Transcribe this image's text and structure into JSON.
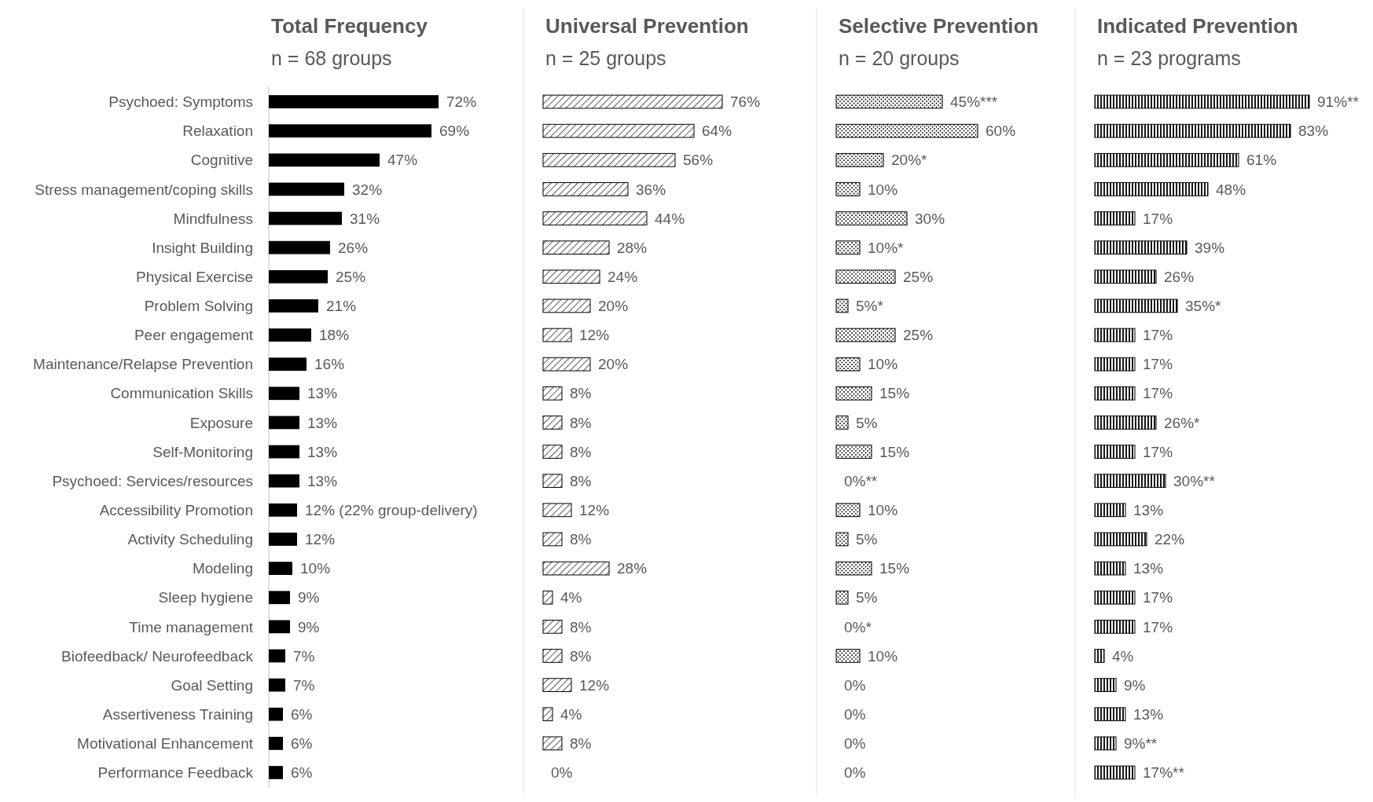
{
  "chart_data": [
    {
      "type": "bar",
      "orientation": "horizontal",
      "title": "Total Frequency",
      "subtitle": "n = 68 groups",
      "color": "#000000",
      "tick_labels": "y",
      "categories": [
        "Psychoed: Symptoms",
        "Relaxation",
        "Cognitive",
        "Stress management/coping skills",
        "Mindfulness",
        "Insight Building",
        "Physical Exercise",
        "Problem Solving",
        "Peer engagement",
        "Maintenance/Relapse Prevention",
        "Communication Skills",
        "Exposure",
        "Self-Monitoring",
        "Psychoed: Services/resources",
        "Accessibility Promotion",
        "Activity Scheduling",
        "Modeling",
        "Sleep hygiene",
        "Time management",
        "Biofeedback/ Neurofeedback",
        "Goal Setting",
        "Assertiveness Training",
        "Motivational Enhancement",
        "Performance Feedback"
      ],
      "values": [
        72,
        69,
        47,
        32,
        31,
        26,
        25,
        21,
        18,
        16,
        13,
        13,
        13,
        13,
        12,
        12,
        10,
        9,
        9,
        7,
        7,
        6,
        6,
        6
      ],
      "value_labels": [
        "72%",
        "69%",
        "47%",
        "32%",
        "31%",
        "26%",
        "25%",
        "21%",
        "18%",
        "16%",
        "13%",
        "13%",
        "13%",
        "13%",
        "12% (22% group-delivery)",
        "12%",
        "10%",
        "9%",
        "9%",
        "7%",
        "7%",
        "6%",
        "6%",
        "6%"
      ]
    },
    {
      "type": "bar",
      "orientation": "horizontal",
      "title": "Universal Prevention",
      "subtitle": "n = 25 groups",
      "color": "#000000",
      "tick_labels": false,
      "categories": [
        null,
        null,
        null,
        null,
        null,
        null,
        null,
        null,
        null,
        null,
        null,
        null,
        null,
        null,
        null,
        null,
        null,
        null,
        null,
        null,
        null,
        null,
        null,
        null
      ],
      "values": [
        76,
        64,
        56,
        36,
        44,
        28,
        24,
        20,
        12,
        20,
        8,
        8,
        8,
        8,
        12,
        8,
        28,
        4,
        8,
        8,
        12,
        4,
        8,
        0
      ],
      "value_labels": [
        "76%",
        "64%",
        "56%",
        "36%",
        "44%",
        "28%",
        "24%",
        "20%",
        "12%",
        "20%",
        "8%",
        "8%",
        "8%",
        "8%",
        "12%",
        "8%",
        "28%",
        "4%",
        "8%",
        "8%",
        "12%",
        "4%",
        "8%",
        "0%"
      ]
    },
    {
      "type": "bar",
      "orientation": "horizontal",
      "title": "Selective Prevention",
      "subtitle": "n = 20 groups",
      "color": "#000000",
      "tick_labels": false,
      "categories": [
        null,
        null,
        null,
        null,
        null,
        null,
        null,
        null,
        null,
        null,
        null,
        null,
        null,
        null,
        null,
        null,
        null,
        null,
        null,
        null,
        null,
        null,
        null,
        null
      ],
      "values": [
        45,
        60,
        20,
        10,
        30,
        10,
        25,
        5,
        25,
        10,
        15,
        5,
        15,
        0,
        10,
        5,
        15,
        5,
        0,
        10,
        0,
        0,
        0,
        0
      ],
      "value_labels": [
        "45%***",
        "60%",
        "20%*",
        "10%",
        "30%",
        "10%*",
        "25%",
        "5%*",
        "25%",
        "10%",
        "15%",
        "5%",
        "15%",
        "0%**",
        "10%",
        "5%",
        "15%",
        "5%",
        "0%*",
        "10%",
        "0%",
        "0%",
        "0%",
        "0%"
      ]
    },
    {
      "type": "bar",
      "orientation": "horizontal",
      "title": "Indicated Prevention",
      "subtitle": "n = 23 programs",
      "color": "#000000",
      "tick_labels": false,
      "categories": [
        null,
        null,
        null,
        null,
        null,
        null,
        null,
        null,
        null,
        null,
        null,
        null,
        null,
        null,
        null,
        null,
        null,
        null,
        null,
        null,
        null,
        null,
        null,
        null
      ],
      "values": [
        91,
        83,
        61,
        48,
        17,
        39,
        26,
        35,
        17,
        17,
        17,
        26,
        17,
        30,
        13,
        22,
        13,
        17,
        17,
        4,
        9,
        13,
        9,
        17
      ],
      "value_labels": [
        "91%**",
        "83%",
        "61%",
        "48%",
        "17%",
        "39%",
        "26%",
        "35%*",
        "17%",
        "17%",
        "17%",
        "26%*",
        "17%",
        "30%**",
        "13%",
        "22%",
        "13%",
        "17%",
        "17%",
        "4%",
        "9%",
        "13%",
        "9%**",
        "17%**"
      ]
    }
  ]
}
